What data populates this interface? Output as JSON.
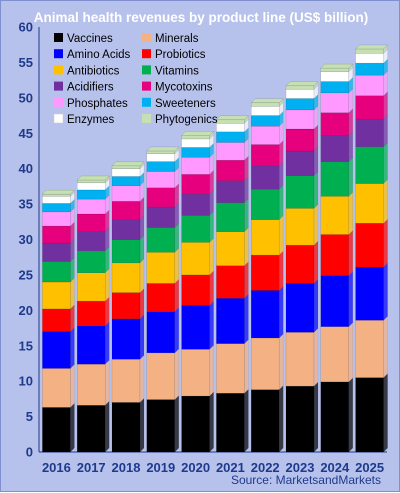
{
  "chart_data": {
    "type": "bar",
    "stacked": true,
    "title": "Animal health revenues by product line (US$ billion)",
    "source": "Source: MarketsandMarkets",
    "categories": [
      "2016",
      "2017",
      "2018",
      "2019",
      "2020",
      "2021",
      "2022",
      "2023",
      "2024",
      "2025"
    ],
    "ylim": [
      0,
      60
    ],
    "yticks": [
      0,
      5,
      10,
      15,
      20,
      25,
      30,
      35,
      40,
      45,
      50,
      55,
      60
    ],
    "grid": false,
    "legend_position": "top-left",
    "series": [
      {
        "name": "Vaccines",
        "color": "#000000",
        "values": [
          6.3,
          6.6,
          7.0,
          7.4,
          7.9,
          8.3,
          8.8,
          9.3,
          9.9,
          10.5
        ]
      },
      {
        "name": "Minerals",
        "color": "#f4b183",
        "values": [
          5.5,
          5.8,
          6.1,
          6.6,
          6.6,
          7.0,
          7.3,
          7.6,
          7.8,
          8.1
        ]
      },
      {
        "name": "Amino Acids",
        "color": "#0000ff",
        "values": [
          5.2,
          5.4,
          5.7,
          5.8,
          6.2,
          6.4,
          6.7,
          6.9,
          7.2,
          7.5
        ]
      },
      {
        "name": "Probiotics",
        "color": "#ff0000",
        "values": [
          3.2,
          3.5,
          3.7,
          4.0,
          4.3,
          4.6,
          5.0,
          5.4,
          5.8,
          6.2
        ]
      },
      {
        "name": "Antibiotics",
        "color": "#ffc000",
        "values": [
          3.8,
          4.0,
          4.2,
          4.4,
          4.6,
          4.8,
          5.0,
          5.2,
          5.4,
          5.6
        ]
      },
      {
        "name": "Vitamins",
        "color": "#00b050",
        "values": [
          2.9,
          3.1,
          3.3,
          3.5,
          3.8,
          4.1,
          4.3,
          4.6,
          4.9,
          5.2
        ]
      },
      {
        "name": "Acidifiers",
        "color": "#7030a0",
        "values": [
          2.6,
          2.7,
          2.8,
          2.9,
          3.0,
          3.1,
          3.3,
          3.5,
          3.7,
          3.9
        ]
      },
      {
        "name": "Mycotoxins",
        "color": "#e6007e",
        "values": [
          2.4,
          2.5,
          2.6,
          2.7,
          2.8,
          2.9,
          3.0,
          3.1,
          3.2,
          3.3
        ]
      },
      {
        "name": "Phosphates",
        "color": "#ff99ff",
        "values": [
          2.0,
          2.1,
          2.2,
          2.3,
          2.4,
          2.5,
          2.6,
          2.7,
          2.8,
          2.9
        ]
      },
      {
        "name": "Sweeteners",
        "color": "#00b0f0",
        "values": [
          1.2,
          1.3,
          1.3,
          1.4,
          1.4,
          1.5,
          1.5,
          1.6,
          1.6,
          1.7
        ]
      },
      {
        "name": "Enzymes",
        "color": "#ffffff",
        "values": [
          1.0,
          1.0,
          1.1,
          1.1,
          1.2,
          1.2,
          1.3,
          1.3,
          1.4,
          1.4
        ]
      },
      {
        "name": "Phytogenics",
        "color": "#c6e0b4",
        "values": [
          0.3,
          0.4,
          0.4,
          0.4,
          0.5,
          0.5,
          0.5,
          0.5,
          0.5,
          0.6
        ]
      }
    ]
  }
}
